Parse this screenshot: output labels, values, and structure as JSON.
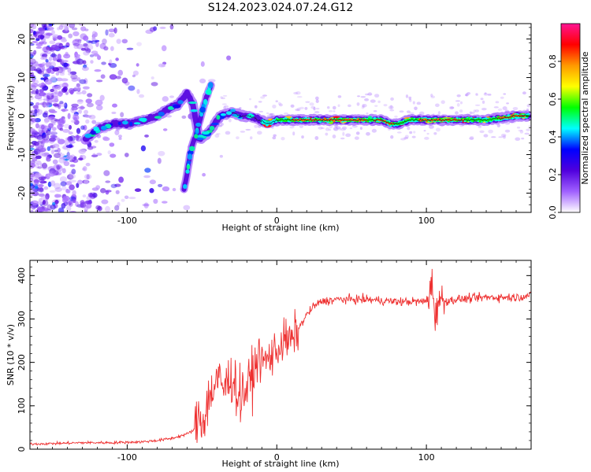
{
  "figure_title": "S124.2023.024.07.24.G12",
  "colors": {
    "snr_line": "#ee3030",
    "axis": "#000000",
    "ridge_core": "#1a1a4a"
  },
  "chart_data": [
    {
      "type": "heatmap",
      "title": "",
      "xlabel": "Height of straight line (km)",
      "ylabel": "Frequency (Hz)",
      "xlim": [
        -165,
        170
      ],
      "ylim": [
        -25,
        24
      ],
      "xticks": [
        -100,
        0,
        100
      ],
      "yticks": [
        -20,
        -10,
        0,
        10,
        20
      ],
      "xtick_labels": [
        "-100",
        "0",
        "100"
      ],
      "ytick_labels": [
        "-20",
        "-10",
        "0",
        "10",
        "20"
      ],
      "ridge": {
        "x": [
          -128,
          -118,
          -108,
          -98,
          -88,
          -80,
          -72,
          -66,
          -60,
          -56,
          -52,
          -45,
          -38,
          -30,
          -24,
          -18,
          -12,
          -6,
          0,
          10,
          30,
          50,
          70,
          76,
          82,
          88,
          95,
          105,
          120,
          140,
          160,
          168
        ],
        "y": [
          -6,
          -3,
          -2,
          -2,
          -1,
          0,
          2,
          3,
          6,
          3,
          -6,
          -4,
          0,
          1,
          0,
          0,
          -1,
          -2,
          -1,
          -1,
          -1,
          -1,
          -1,
          -2,
          -2,
          -1,
          -1,
          -1,
          -1,
          -1,
          0,
          0
        ]
      },
      "branch": {
        "x": [
          -62,
          -60,
          -58,
          -56,
          -54,
          -52,
          -50,
          -47,
          -44
        ],
        "y": [
          -19,
          -15,
          -10,
          -7,
          -5,
          -2,
          1,
          5,
          8
        ]
      },
      "colorbar": {
        "label": "Normalized spectral amplitude",
        "range": [
          0,
          1
        ],
        "ticks": [
          0.0,
          0.2,
          0.4,
          0.6,
          0.8
        ],
        "tick_labels": [
          "0.0",
          "0.2",
          "0.4",
          "0.6",
          "0.8"
        ],
        "stops": [
          "#ffffff",
          "#a060ff",
          "#5000dd",
          "#0000ff",
          "#00ffff",
          "#00ff00",
          "#ffff00",
          "#ff9900",
          "#ff0000",
          "#ff1493"
        ]
      }
    },
    {
      "type": "line",
      "title": "",
      "xlabel": "Height of straight line (km)",
      "ylabel": "SNR (10 * v/v)",
      "xlim": [
        -165,
        170
      ],
      "ylim": [
        0,
        435
      ],
      "xticks": [
        -100,
        0,
        100
      ],
      "yticks": [
        0,
        100,
        200,
        300,
        400
      ],
      "xtick_labels": [
        "-100",
        "0",
        "100"
      ],
      "ytick_labels": [
        "0",
        "100",
        "200",
        "300",
        "400"
      ],
      "series": [
        {
          "name": "SNR",
          "x": [
            -165,
            -150,
            -130,
            -110,
            -90,
            -80,
            -70,
            -60,
            -55,
            -52,
            -50,
            -45,
            -40,
            -35,
            -30,
            -25,
            -20,
            -15,
            -12,
            -10,
            -5,
            0,
            5,
            10,
            15,
            20,
            25,
            30,
            40,
            60,
            80,
            100,
            104,
            106,
            108,
            110,
            120,
            140,
            160,
            170
          ],
          "y": [
            12,
            13,
            15,
            15,
            17,
            20,
            25,
            35,
            45,
            80,
            60,
            120,
            160,
            140,
            170,
            120,
            140,
            180,
            220,
            200,
            210,
            230,
            250,
            250,
            280,
            310,
            330,
            340,
            345,
            345,
            340,
            340,
            380,
            300,
            350,
            340,
            345,
            350,
            350,
            355
          ]
        }
      ]
    }
  ]
}
